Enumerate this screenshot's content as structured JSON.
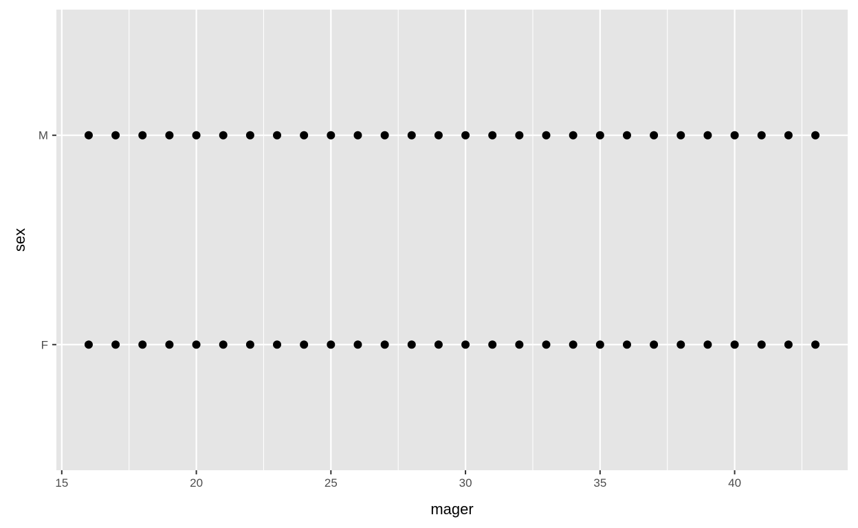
{
  "chart_data": {
    "type": "scatter",
    "xlabel": "mager",
    "ylabel": "sex",
    "xlim": [
      14.8,
      44.2
    ],
    "x_ticks": [
      15,
      20,
      25,
      30,
      35,
      40
    ],
    "y_categories": [
      "F",
      "M"
    ],
    "grid": true,
    "series": [
      {
        "category": "M",
        "x": [
          16,
          17,
          18,
          19,
          20,
          21,
          22,
          23,
          24,
          25,
          26,
          27,
          28,
          29,
          30,
          31,
          32,
          33,
          34,
          35,
          36,
          37,
          38,
          39,
          40,
          41,
          42,
          43
        ]
      },
      {
        "category": "F",
        "x": [
          16,
          17,
          18,
          19,
          20,
          21,
          22,
          23,
          24,
          25,
          26,
          27,
          28,
          29,
          30,
          31,
          32,
          33,
          34,
          35,
          36,
          37,
          38,
          39,
          40,
          41,
          42,
          43
        ]
      }
    ],
    "colors": {
      "panel": "#e5e5e5",
      "grid": "#ffffff",
      "point": "#000000",
      "tick": "#333333"
    }
  }
}
